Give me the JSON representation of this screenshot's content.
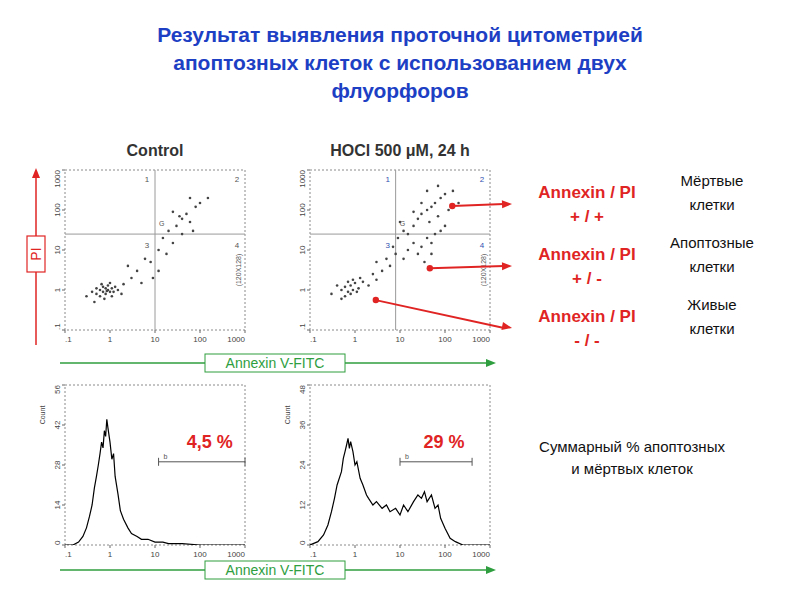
{
  "title": [
    "Результат выявления проточной цитометрией",
    "апоптозных клеток с использованием двух",
    "флуорфоров"
  ],
  "y_axis_label": "PI",
  "x_axis_labels": [
    "Annexin V-FITC",
    "Annexin V-FITC"
  ],
  "chart_data": [
    {
      "type": "scatter",
      "title": "Control",
      "log": true,
      "color": "#444444",
      "marker": "dot",
      "x": [
        0.5,
        0.6,
        0.7,
        0.8,
        0.9,
        1.0,
        0.7,
        0.8,
        1.1,
        0.6,
        0.9,
        1.2,
        0.5,
        0.4,
        1.3,
        0.75,
        1.0,
        0.65,
        1.5,
        0.85,
        0.3,
        2,
        1.8,
        0.45,
        1.1,
        3,
        4,
        5,
        2.5,
        6,
        8,
        12,
        15,
        20,
        25,
        30,
        40,
        50,
        60,
        80,
        100,
        40,
        18,
        12,
        9,
        150,
        70,
        35,
        25,
        60
      ],
      "values": [
        0.8,
        1.0,
        0.9,
        1.1,
        1.0,
        0.9,
        1.2,
        0.8,
        1.1,
        0.7,
        1.3,
        0.9,
        1.1,
        0.9,
        1.2,
        0.6,
        1.5,
        1.4,
        1.0,
        0.95,
        0.7,
        1.4,
        0.8,
        0.5,
        0.7,
        2,
        3,
        1.5,
        4,
        6,
        5,
        10,
        20,
        30,
        15,
        40,
        60,
        80,
        50,
        120,
        150,
        25,
        8,
        3,
        2,
        200,
        30,
        70,
        90,
        200
      ],
      "xlim": [
        0.1,
        1000
      ],
      "ylim": [
        0.1,
        1000
      ],
      "xticks": [
        {
          "value": 0.1,
          "label": ".1"
        },
        1,
        10,
        100,
        1000
      ],
      "yticks": [
        {
          "value": 0.1,
          "label": ".1"
        },
        1,
        10,
        100,
        1000
      ],
      "quadrant": {
        "x": 10,
        "y": 25
      },
      "quadrant_labels": [
        "1",
        "2",
        "3",
        "4"
      ],
      "gate_label": "G",
      "annotation": "(120X128)"
    },
    {
      "type": "scatter",
      "title": "HOCl 500 μM, 24 h",
      "log": true,
      "color": "#444444",
      "marker": "dot",
      "x": [
        0.3,
        0.5,
        0.6,
        0.7,
        0.8,
        0.9,
        1.0,
        0.6,
        1.2,
        0.4,
        0.8,
        1.5,
        0.7,
        1.1,
        2,
        0.5,
        1.3,
        0.9,
        2.5,
        3,
        4,
        5,
        3,
        6,
        8,
        7,
        12,
        15,
        20,
        25,
        30,
        40,
        50,
        60,
        80,
        100,
        35,
        50,
        15,
        20,
        25,
        30,
        40,
        50,
        60,
        80,
        100,
        30,
        20,
        45,
        70,
        120,
        150,
        10,
        12,
        9,
        200,
        40,
        70
      ],
      "values": [
        0.8,
        1.0,
        1.2,
        0.9,
        1.3,
        1.0,
        1.5,
        0.7,
        1.1,
        1.3,
        0.8,
        1.6,
        1.6,
        0.9,
        1.3,
        0.6,
        2,
        1.8,
        2.5,
        1.8,
        3,
        6,
        5,
        4,
        8,
        12,
        6,
        10,
        15,
        8,
        12,
        20,
        15,
        25,
        30,
        40,
        5,
        8,
        25,
        40,
        60,
        80,
        100,
        120,
        150,
        200,
        250,
        150,
        90,
        50,
        70,
        100,
        300,
        50,
        30,
        20,
        150,
        300,
        400
      ],
      "xlim": [
        0.1,
        1000
      ],
      "ylim": [
        0.1,
        1000
      ],
      "xticks": [
        {
          "value": 0.1,
          "label": ".1"
        },
        1,
        10,
        100,
        1000
      ],
      "yticks": [
        {
          "value": 0.1,
          "label": ".1"
        },
        1,
        10,
        100,
        1000
      ],
      "quadrant": {
        "x": 8,
        "y": 25
      },
      "quadrant_labels": [
        "1",
        "2",
        "3",
        "4"
      ],
      "gate_label": "G",
      "annotation": "(120X128)"
    },
    {
      "type": "line",
      "y_label": "Count",
      "log": "x",
      "color": "#000000",
      "x": [
        0.1,
        0.15,
        0.2,
        0.25,
        0.3,
        0.35,
        0.4,
        0.45,
        0.5,
        0.55,
        0.6,
        0.65,
        0.7,
        0.75,
        0.8,
        0.85,
        0.9,
        1.0,
        1.1,
        1.2,
        1.3,
        1.5,
        1.7,
        2,
        2.5,
        3,
        4,
        5,
        7,
        10,
        15,
        20,
        40,
        100,
        1000
      ],
      "values": [
        0,
        0,
        1,
        3,
        6,
        10,
        14,
        20,
        24,
        28,
        32,
        36,
        34,
        40,
        38,
        44,
        41,
        36,
        30,
        32,
        24,
        18,
        12,
        9,
        6,
        4,
        3,
        2,
        2,
        1,
        1,
        0.5,
        0.5,
        0,
        0
      ],
      "xlim": [
        0.1,
        1000
      ],
      "ylim": [
        0,
        56
      ],
      "xticks": [
        {
          "value": 0.1,
          "label": ".1"
        },
        1,
        10,
        100,
        1000
      ],
      "yticks": [
        0,
        14,
        28,
        42,
        56
      ],
      "gate": {
        "start": 12,
        "end": 1000,
        "label": "b",
        "percent": {
          "value": 4.5,
          "label": "4,5 %"
        }
      }
    },
    {
      "type": "line",
      "y_label": "Count",
      "log": "x",
      "color": "#000000",
      "x": [
        0.1,
        0.15,
        0.2,
        0.25,
        0.3,
        0.35,
        0.4,
        0.5,
        0.55,
        0.6,
        0.65,
        0.7,
        0.75,
        0.8,
        0.9,
        1.0,
        1.1,
        1.3,
        1.5,
        1.8,
        2,
        2.5,
        3,
        4,
        5,
        6,
        8,
        10,
        12,
        15,
        20,
        25,
        30,
        35,
        40,
        50,
        60,
        70,
        80,
        100,
        130,
        170,
        250,
        1000
      ],
      "values": [
        0,
        1,
        3,
        6,
        10,
        14,
        18,
        22,
        26,
        28,
        30,
        32,
        29,
        31,
        28,
        24,
        25,
        20,
        18,
        15,
        14,
        12,
        13,
        11,
        12,
        10,
        11,
        9,
        12,
        10,
        13,
        15,
        14,
        16,
        13,
        15,
        11,
        12,
        8,
        5,
        2,
        1,
        0,
        0
      ],
      "xlim": [
        0.1,
        1000
      ],
      "ylim": [
        0,
        48
      ],
      "xticks": [
        {
          "value": 0.1,
          "label": ".1"
        },
        1,
        10,
        100,
        1000
      ],
      "yticks": [
        0,
        12,
        24,
        36,
        48
      ],
      "gate": {
        "start": 10,
        "end": 400,
        "label": "b",
        "percent": {
          "value": 29,
          "label": "29 %"
        }
      }
    }
  ],
  "callouts": [
    {
      "label": [
        "Annexin / PI",
        "+ / +"
      ],
      "meaning": [
        "Мёртвые",
        "клетки"
      ],
      "x": 145,
      "y": 126
    },
    {
      "label": [
        "Annexin / PI",
        "+ / -"
      ],
      "meaning": [
        "Апоптозные",
        "клетки"
      ],
      "x": 46,
      "y": 3.5
    },
    {
      "label": [
        "Annexin / PI",
        "- / -"
      ],
      "meaning": [
        "Живые",
        "клетки"
      ],
      "x": 2.9,
      "y": 0.56
    }
  ],
  "summary_label": [
    "Суммарный % апоптозных",
    "и мёртвых клеток"
  ]
}
